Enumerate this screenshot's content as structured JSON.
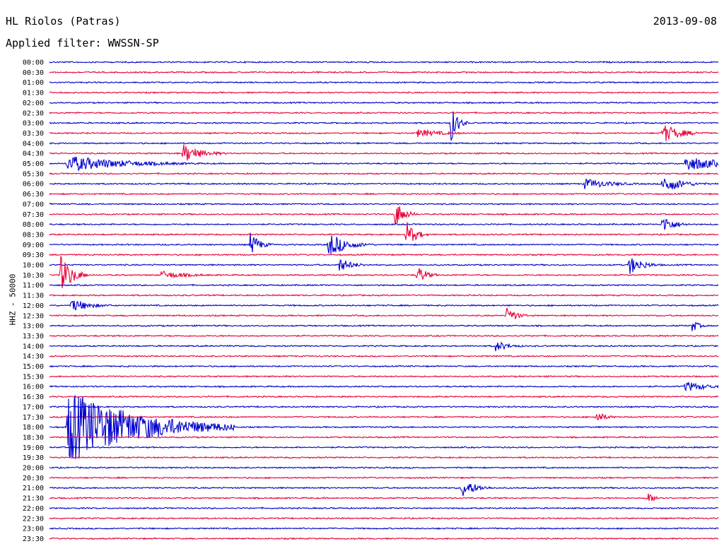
{
  "header": {
    "station": "HL Riolos (Patras)",
    "date": "2013-09-08",
    "filter": "Applied filter: WWSSN-SP"
  },
  "chart_data": {
    "type": "line",
    "title": "HL Riolos (Patras)",
    "ylabel": "HHZ - 50000",
    "xlabel": "",
    "grid": false,
    "trace_colors": [
      "#0000cc",
      "#e8003a"
    ],
    "row_labels": [
      "00:00",
      "00:30",
      "01:00",
      "01:30",
      "02:00",
      "02:30",
      "03:00",
      "03:30",
      "04:00",
      "04:30",
      "05:00",
      "05:30",
      "06:00",
      "06:30",
      "07:00",
      "07:30",
      "08:00",
      "08:30",
      "09:00",
      "09:30",
      "10:00",
      "10:30",
      "11:00",
      "11:30",
      "12:00",
      "12:30",
      "13:00",
      "13:30",
      "14:00",
      "14:30",
      "15:00",
      "15:30",
      "16:00",
      "16:30",
      "17:00",
      "17:30",
      "18:00",
      "18:30",
      "19:00",
      "19:30",
      "20:00",
      "20:30",
      "21:00",
      "21:30",
      "22:00",
      "22:30",
      "23:00",
      "23:30"
    ],
    "events_minutes_into_row": [
      {
        "row": "03:00",
        "t": 18.0,
        "amp": 28,
        "dur": 0.3
      },
      {
        "row": "03:30",
        "t": 16.5,
        "amp": 6,
        "dur": 1.2
      },
      {
        "row": "03:30",
        "t": 27.5,
        "amp": 14,
        "dur": 0.8
      },
      {
        "row": "04:30",
        "t": 6.0,
        "amp": 14,
        "dur": 0.8
      },
      {
        "row": "05:00",
        "t": 0.8,
        "amp": 12,
        "dur": 2.5
      },
      {
        "row": "05:00",
        "t": 28.5,
        "amp": 12,
        "dur": 1.5
      },
      {
        "row": "06:00",
        "t": 24.0,
        "amp": 8,
        "dur": 1.2
      },
      {
        "row": "06:00",
        "t": 27.5,
        "amp": 14,
        "dur": 0.8
      },
      {
        "row": "07:30",
        "t": 15.5,
        "amp": 20,
        "dur": 0.4
      },
      {
        "row": "08:00",
        "t": 27.5,
        "amp": 14,
        "dur": 0.5
      },
      {
        "row": "08:30",
        "t": 16.0,
        "amp": 20,
        "dur": 0.4
      },
      {
        "row": "09:00",
        "t": 9.0,
        "amp": 18,
        "dur": 0.4
      },
      {
        "row": "09:00",
        "t": 12.5,
        "amp": 18,
        "dur": 0.8
      },
      {
        "row": "10:00",
        "t": 13.0,
        "amp": 10,
        "dur": 0.6
      },
      {
        "row": "10:00",
        "t": 26.0,
        "amp": 14,
        "dur": 0.6
      },
      {
        "row": "10:30",
        "t": 0.5,
        "amp": 28,
        "dur": 0.5
      },
      {
        "row": "10:30",
        "t": 5.0,
        "amp": 6,
        "dur": 1.2
      },
      {
        "row": "10:30",
        "t": 16.5,
        "amp": 14,
        "dur": 0.4
      },
      {
        "row": "12:00",
        "t": 1.0,
        "amp": 10,
        "dur": 0.8
      },
      {
        "row": "12:30",
        "t": 20.5,
        "amp": 14,
        "dur": 0.4
      },
      {
        "row": "13:00",
        "t": 28.8,
        "amp": 10,
        "dur": 0.3
      },
      {
        "row": "14:00",
        "t": 20.0,
        "amp": 8,
        "dur": 0.6
      },
      {
        "row": "16:00",
        "t": 28.5,
        "amp": 8,
        "dur": 1.0
      },
      {
        "row": "17:30",
        "t": 24.5,
        "amp": 10,
        "dur": 0.4
      },
      {
        "row": "18:00",
        "t": 0.8,
        "amp": 55,
        "dur": 3.0
      },
      {
        "row": "21:00",
        "t": 18.5,
        "amp": 14,
        "dur": 0.6
      },
      {
        "row": "21:30",
        "t": 26.8,
        "amp": 8,
        "dur": 0.4
      }
    ]
  }
}
